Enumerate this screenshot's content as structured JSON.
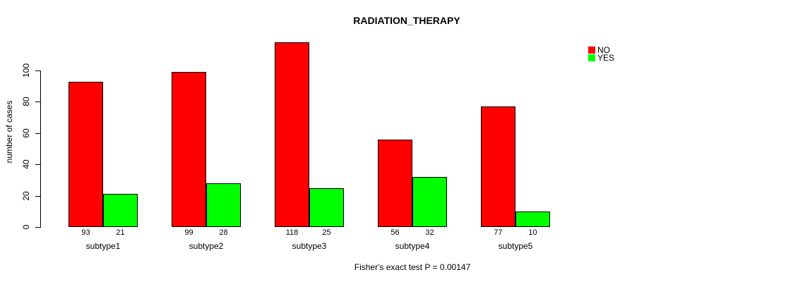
{
  "chart_data": {
    "type": "bar",
    "title": "RADIATION_THERAPY",
    "ylabel": "number of cases",
    "xlabel": "",
    "categories": [
      "subtype1",
      "subtype2",
      "subtype3",
      "subtype4",
      "subtype5"
    ],
    "series": [
      {
        "name": "NO",
        "color": "#ff0000",
        "values": [
          93,
          99,
          118,
          56,
          77
        ]
      },
      {
        "name": "YES",
        "color": "#00ff00",
        "values": [
          21,
          28,
          25,
          32,
          10
        ]
      }
    ],
    "bar_value_labels": [
      [
        93,
        99,
        118,
        56,
        77
      ],
      [
        21,
        28,
        25,
        32,
        10
      ]
    ],
    "yticks": [
      0,
      20,
      40,
      60,
      80,
      100
    ],
    "ylim": [
      0,
      118
    ],
    "grid": false,
    "legend_position": "top-right",
    "annotation": "Fisher's exact test P = 0.00147"
  },
  "colors": {
    "axis": "#000000",
    "bar_border": "#000000",
    "background": "#ffffff",
    "text": "#000000"
  }
}
